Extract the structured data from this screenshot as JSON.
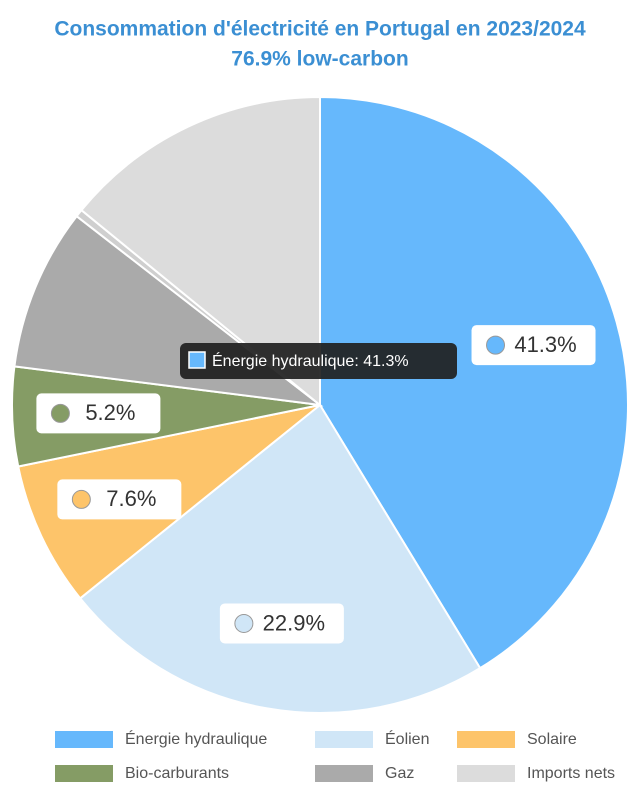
{
  "chart_data": {
    "type": "pie",
    "title": "Consommation d'électricité en Portugal en 2023/2024",
    "subtitle": "76.9% low-carbon",
    "categories": [
      "Énergie hydraulique",
      "Éolien",
      "Solaire",
      "Bio-carburants",
      "Gaz",
      null,
      "Imports nets"
    ],
    "values": [
      41.3,
      22.9,
      7.6,
      5.2,
      8.5,
      0.4,
      14.1
    ],
    "value_labels": [
      "41.3%",
      "22.9%",
      "7.6%",
      "5.2%",
      null,
      null,
      null
    ],
    "colors": [
      "#66b8fc",
      "#d0e6f7",
      "#fdc46a",
      "#859c65",
      "#aaaaaa",
      "#cfcfcf",
      "#dcdcdc"
    ],
    "tooltip": "Énergie hydraulique: 41.3%",
    "legend": "bottom"
  }
}
